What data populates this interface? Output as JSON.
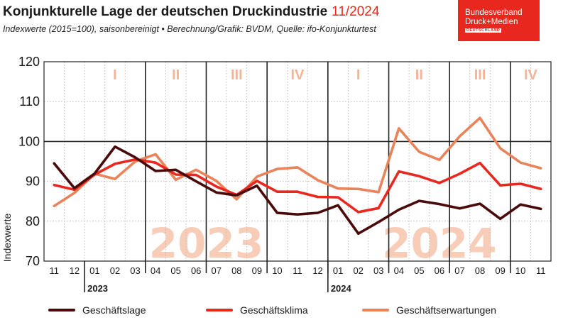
{
  "header": {
    "title": "Konjunkturelle Lage der deutschen Druckindustrie",
    "date": "11/2024",
    "subtitle": "Indexwerte (2015=100), saisonbereinigt • Berechnung/Grafik: BVDM, Quelle: ifo-Konjunkturtest"
  },
  "logo": {
    "line1": "Bundesverband",
    "line2": "Druck+Medien",
    "line3": "DEUTSCHLAND",
    "color": "#e8281e"
  },
  "chart_data": {
    "type": "line",
    "ylabel": "Indexwerte",
    "ylim": [
      70,
      120
    ],
    "yticks": [
      70,
      80,
      90,
      100,
      110,
      120
    ],
    "grid": true,
    "x": [
      "11",
      "12",
      "01",
      "02",
      "03",
      "04",
      "05",
      "06",
      "07",
      "08",
      "09",
      "10",
      "11",
      "12",
      "01",
      "02",
      "03",
      "04",
      "05",
      "06",
      "07",
      "08",
      "09",
      "10",
      "11"
    ],
    "years": [
      {
        "label": "2023",
        "start_index": 2
      },
      {
        "label": "2024",
        "start_index": 14
      }
    ],
    "year_watermarks": [
      {
        "label": "2023",
        "start_index": 2,
        "end_index": 13
      },
      {
        "label": "2024",
        "start_index": 14,
        "end_index": 24
      }
    ],
    "quarters": [
      {
        "label": "I",
        "start_index": 2
      },
      {
        "label": "II",
        "start_index": 5
      },
      {
        "label": "III",
        "start_index": 8
      },
      {
        "label": "IV",
        "start_index": 11
      },
      {
        "label": "I",
        "start_index": 14
      },
      {
        "label": "II",
        "start_index": 17
      },
      {
        "label": "III",
        "start_index": 20
      },
      {
        "label": "IV",
        "start_index": 23
      }
    ],
    "series": [
      {
        "name": "Geschäftslage",
        "color": "#4a0a0a",
        "values": [
          94.5,
          88.3,
          92.0,
          98.7,
          96.0,
          92.6,
          92.9,
          90.0,
          87.2,
          86.5,
          88.9,
          82.1,
          81.7,
          82.1,
          84.0,
          76.9,
          79.8,
          82.9,
          85.1,
          84.3,
          83.2,
          84.4,
          80.6,
          84.2,
          83.1
        ]
      },
      {
        "name": "Geschäftsklima",
        "color": "#e8281e",
        "values": [
          89.1,
          87.9,
          91.7,
          94.4,
          95.5,
          94.7,
          91.7,
          91.6,
          88.7,
          86.6,
          90.1,
          87.4,
          87.4,
          86.1,
          86.0,
          82.3,
          83.3,
          92.5,
          91.3,
          89.6,
          91.9,
          94.6,
          89.0,
          89.4,
          88.1
        ]
      },
      {
        "name": "Geschäftserwartungen",
        "color": "#e8835a",
        "values": [
          83.8,
          87.1,
          91.9,
          90.6,
          95.0,
          96.8,
          90.4,
          92.9,
          90.1,
          85.5,
          91.2,
          93.1,
          93.5,
          90.3,
          88.2,
          88.1,
          87.3,
          103.3,
          97.4,
          95.4,
          101.3,
          105.9,
          98.3,
          94.7,
          93.3
        ]
      }
    ]
  }
}
